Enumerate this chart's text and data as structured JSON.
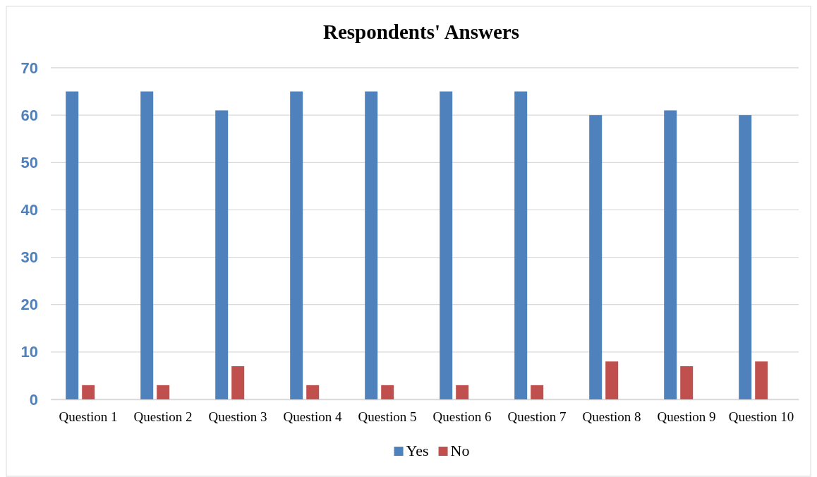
{
  "chart_data": {
    "type": "bar",
    "title": "Respondents' Answers",
    "categories": [
      "Question 1",
      "Question 2",
      "Question 3",
      "Question 4",
      "Question 5",
      "Question 6",
      "Question 7",
      "Question 8",
      "Question 9",
      "Question 10"
    ],
    "series": [
      {
        "name": "Yes",
        "color": "#4f81bd",
        "values": [
          65,
          65,
          61,
          65,
          65,
          65,
          65,
          60,
          61,
          60
        ]
      },
      {
        "name": "No",
        "color": "#c0504d",
        "values": [
          3,
          3,
          7,
          3,
          3,
          3,
          3,
          8,
          7,
          8
        ]
      }
    ],
    "ylim": [
      0,
      70
    ],
    "yticks": [
      0,
      10,
      20,
      30,
      40,
      50,
      60,
      70
    ],
    "grid": "y",
    "legend": "bottom"
  }
}
